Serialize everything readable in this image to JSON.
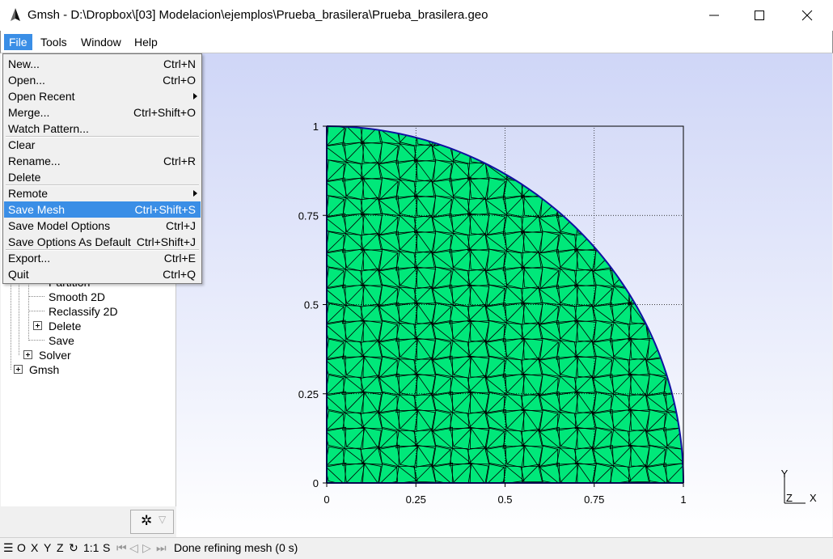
{
  "window": {
    "title": "Gmsh - D:\\Dropbox\\[03] Modelacion\\ejemplos\\Prueba_brasilera\\Prueba_brasilera.geo",
    "minimize_icon": "minimize-icon",
    "maximize_icon": "maximize-icon",
    "close_icon": "close-icon"
  },
  "menubar": [
    {
      "label": "File",
      "active": true
    },
    {
      "label": "Tools",
      "active": false
    },
    {
      "label": "Window",
      "active": false
    },
    {
      "label": "Help",
      "active": false
    }
  ],
  "file_menu": [
    {
      "label": "New...",
      "shortcut": "Ctrl+N"
    },
    {
      "label": "Open...",
      "shortcut": "Ctrl+O"
    },
    {
      "label": "Open Recent",
      "shortcut": "",
      "submenu": true
    },
    {
      "label": "Merge...",
      "shortcut": "Ctrl+Shift+O"
    },
    {
      "label": "Watch Pattern...",
      "shortcut": "",
      "separator_after": true
    },
    {
      "label": "Clear",
      "shortcut": ""
    },
    {
      "label": "Rename...",
      "shortcut": "Ctrl+R"
    },
    {
      "label": "Delete",
      "shortcut": "",
      "separator_after": true
    },
    {
      "label": "Remote",
      "shortcut": "",
      "submenu": true
    },
    {
      "label": "Save Mesh",
      "shortcut": "Ctrl+Shift+S",
      "highlighted": true
    },
    {
      "label": "Save Model Options",
      "shortcut": "Ctrl+J"
    },
    {
      "label": "Save Options As Default",
      "shortcut": "Ctrl+Shift+J",
      "separator_after": true
    },
    {
      "label": "Export...",
      "shortcut": "Ctrl+E"
    },
    {
      "label": "Quit",
      "shortcut": "Ctrl+Q"
    }
  ],
  "tree": {
    "items": [
      {
        "label": "Partition",
        "expandable": false
      },
      {
        "label": "Smooth 2D",
        "expandable": false
      },
      {
        "label": "Reclassify 2D",
        "expandable": false
      },
      {
        "label": "Delete",
        "expandable": true
      },
      {
        "label": "Save",
        "expandable": false
      },
      {
        "label": "Solver",
        "expandable": true
      },
      {
        "label": "Gmsh",
        "expandable": true
      }
    ]
  },
  "graphic": {
    "x_ticks": [
      "0",
      "0.25",
      "0.5",
      "0.75",
      "1"
    ],
    "y_ticks": [
      "0",
      "0.25",
      "0.5",
      "0.75",
      "1"
    ],
    "mesh_color": "#00e87a",
    "boundary_color": "#1010a0",
    "axes_labels": {
      "x": "X",
      "y": "Y",
      "z": "Z"
    }
  },
  "statusbar": {
    "menu_icon": "hamburger-icon",
    "view_buttons": [
      "O",
      "X",
      "Y",
      "Z"
    ],
    "rotate_icon": "rotate-icon",
    "scale_label": "1:1",
    "s_label": "S",
    "anim_icons": [
      "first-step-icon",
      "prev-step-icon",
      "next-step-icon"
    ],
    "message": "Done refining mesh (0 s)"
  },
  "gear_button": {
    "icon": "gear-icon"
  }
}
